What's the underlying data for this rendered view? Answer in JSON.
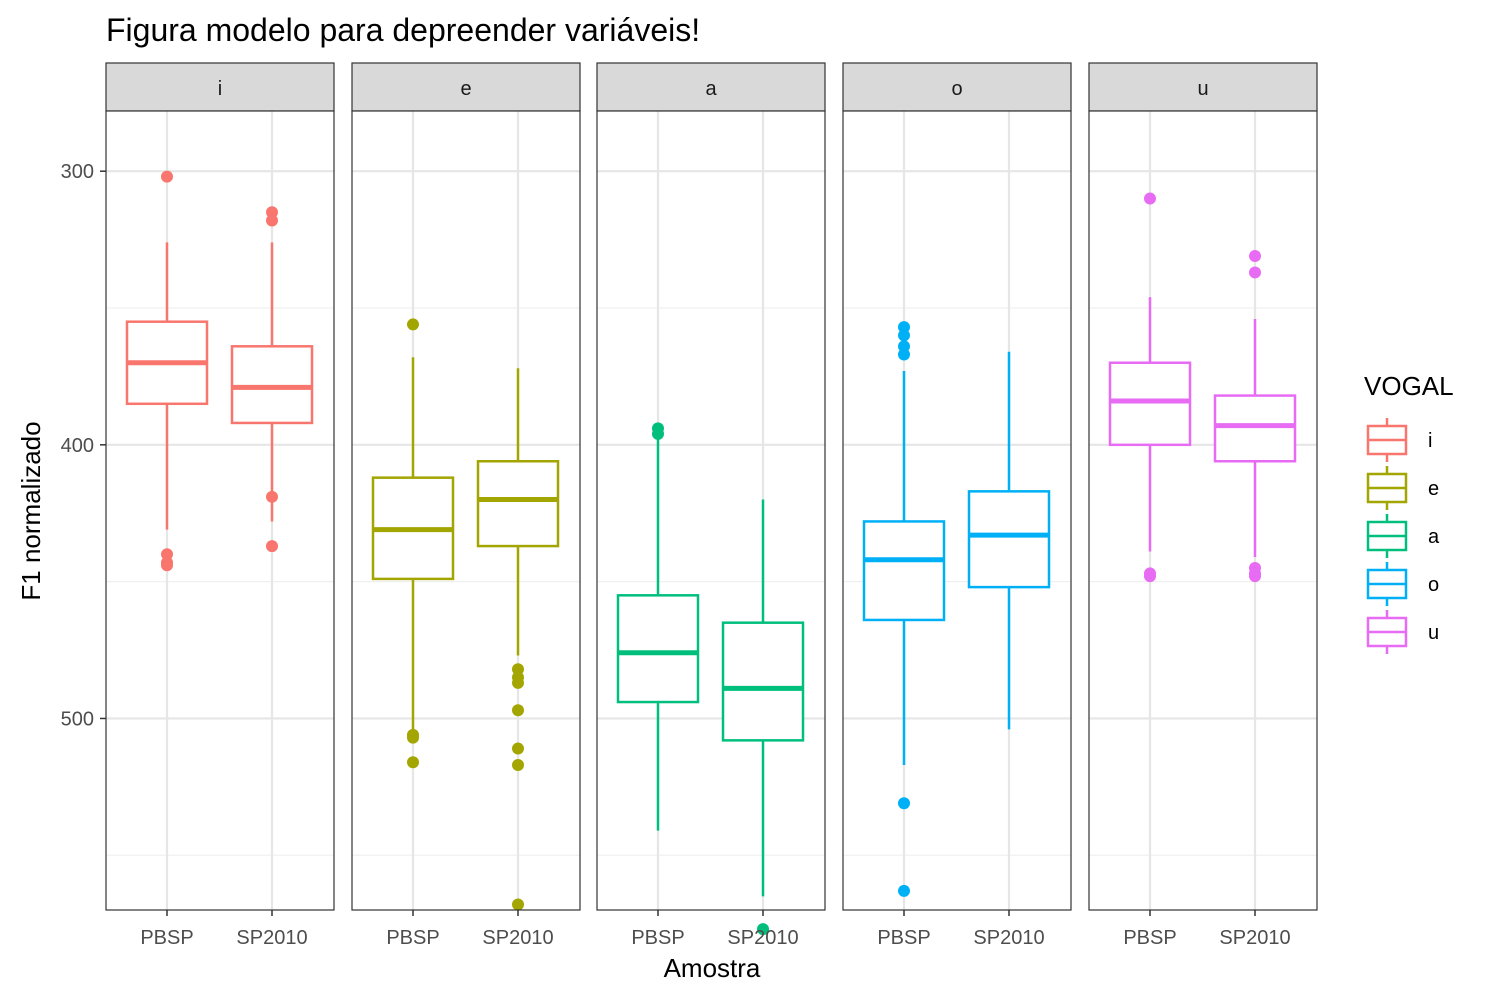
{
  "chart_data": {
    "type": "boxplot",
    "title": "Figura modelo para depreender variáveis!",
    "xlabel": "Amostra",
    "ylabel": "F1 normalizado",
    "y_reversed": true,
    "ylim": [
      278,
      570
    ],
    "yticks": [
      300,
      400,
      500
    ],
    "grid": true,
    "categories": [
      "PBSP",
      "SP2010"
    ],
    "legend": {
      "title": "VOGAL",
      "placement": "right",
      "entries": [
        {
          "label": "i",
          "color": "#F8766D"
        },
        {
          "label": "e",
          "color": "#A3A500"
        },
        {
          "label": "a",
          "color": "#00BF7D"
        },
        {
          "label": "o",
          "color": "#00B0F6"
        },
        {
          "label": "u",
          "color": "#E76BF3"
        }
      ]
    },
    "facets": [
      {
        "label": "i",
        "color": "#F8766D",
        "boxes": [
          {
            "sample": "PBSP",
            "lower_whisker": 326,
            "q1": 355,
            "median": 370,
            "q3": 385,
            "upper_whisker": 431,
            "outliers": [
              302,
              440,
              443,
              444
            ]
          },
          {
            "sample": "SP2010",
            "lower_whisker": 326,
            "q1": 364,
            "median": 379,
            "q3": 392,
            "upper_whisker": 428,
            "outliers": [
              315,
              318,
              419,
              437
            ]
          }
        ]
      },
      {
        "label": "e",
        "color": "#A3A500",
        "boxes": [
          {
            "sample": "PBSP",
            "lower_whisker": 368,
            "q1": 412,
            "median": 431,
            "q3": 449,
            "upper_whisker": 505,
            "outliers": [
              356,
              506,
              507,
              516
            ]
          },
          {
            "sample": "SP2010",
            "lower_whisker": 372,
            "q1": 406,
            "median": 420,
            "q3": 437,
            "upper_whisker": 477,
            "outliers": [
              482,
              485,
              487,
              497,
              511,
              517,
              568
            ]
          }
        ]
      },
      {
        "label": "a",
        "color": "#00BF7D",
        "boxes": [
          {
            "sample": "PBSP",
            "lower_whisker": 396,
            "q1": 455,
            "median": 476,
            "q3": 494,
            "upper_whisker": 541,
            "outliers": [
              394,
              396
            ]
          },
          {
            "sample": "SP2010",
            "lower_whisker": 420,
            "q1": 465,
            "median": 489,
            "q3": 508,
            "upper_whisker": 565,
            "outliers": [
              577
            ]
          }
        ]
      },
      {
        "label": "o",
        "color": "#00B0F6",
        "boxes": [
          {
            "sample": "PBSP",
            "lower_whisker": 373,
            "q1": 428,
            "median": 442,
            "q3": 464,
            "upper_whisker": 517,
            "outliers": [
              357,
              360,
              364,
              367,
              531,
              563
            ]
          },
          {
            "sample": "SP2010",
            "lower_whisker": 366,
            "q1": 417,
            "median": 433,
            "q3": 452,
            "upper_whisker": 504,
            "outliers": []
          }
        ]
      },
      {
        "label": "u",
        "color": "#E76BF3",
        "boxes": [
          {
            "sample": "PBSP",
            "lower_whisker": 346,
            "q1": 370,
            "median": 384,
            "q3": 400,
            "upper_whisker": 439,
            "outliers": [
              310,
              447,
              448
            ]
          },
          {
            "sample": "SP2010",
            "lower_whisker": 354,
            "q1": 382,
            "median": 393,
            "q3": 406,
            "upper_whisker": 441,
            "outliers": [
              331,
              337,
              445,
              447,
              448
            ]
          }
        ]
      }
    ]
  }
}
